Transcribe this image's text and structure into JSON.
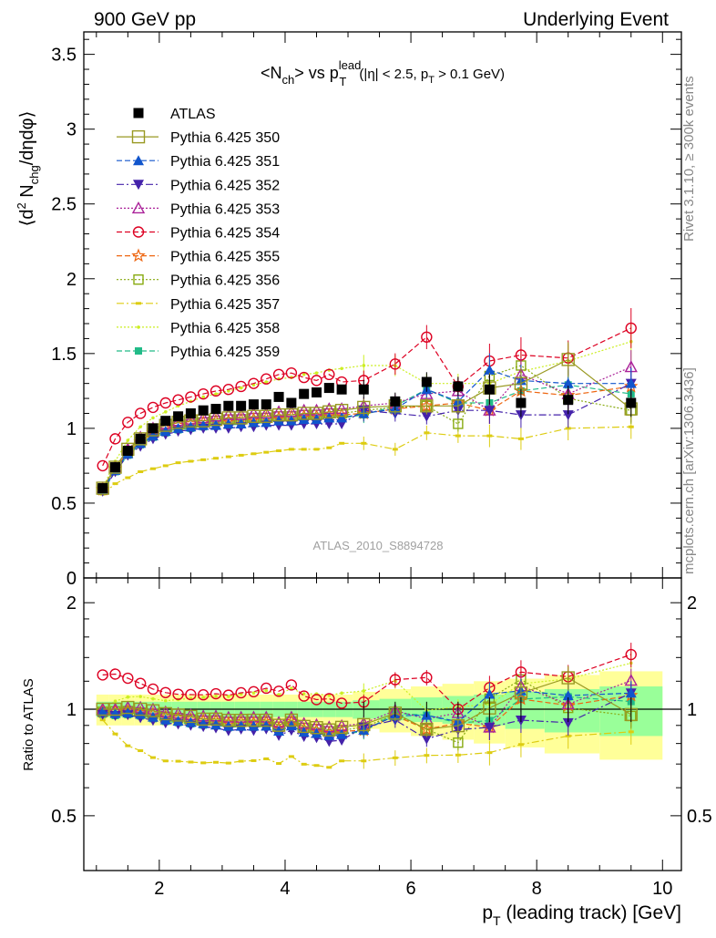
{
  "header": {
    "left": "900 GeV pp",
    "right": "Underlying Event"
  },
  "side_labels": {
    "rivet": "Rivet 3.1.10, ≥ 300k events",
    "mcplots": "mcplots.cern.ch [arXiv:1306.3436]"
  },
  "analysis_id": "ATLAS_2010_S8894728",
  "chart_data": [
    {
      "type": "line",
      "title_parts": {
        "a": "<N",
        "a_sub": "ch",
        "b": "> vs p",
        "b_sup": "lead",
        "b_sub": "T",
        "c": " (|η| < 2.5, p",
        "c_sub": "T",
        "d": " > 0.1 GeV)"
      },
      "ylabel_parts": {
        "a": "⟨d",
        "a_sup": "2",
        "b": " N",
        "b_sub": "chg",
        "c": "/dηdφ⟩"
      },
      "xlim": [
        0.8,
        10.3
      ],
      "ylim": [
        0,
        3.65
      ],
      "y_ticks": [
        0,
        0.5,
        1,
        1.5,
        2,
        2.5,
        3,
        3.5
      ],
      "y_tick_labels": [
        "0",
        "0.5",
        "1",
        "1.5",
        "2",
        "2.5",
        "3",
        "3.5"
      ],
      "x": [
        1.1,
        1.3,
        1.5,
        1.7,
        1.9,
        2.1,
        2.3,
        2.5,
        2.7,
        2.9,
        3.1,
        3.3,
        3.5,
        3.7,
        3.9,
        4.1,
        4.3,
        4.5,
        4.7,
        4.9,
        5.25,
        5.75,
        6.25,
        6.75,
        7.25,
        7.75,
        8.5,
        9.5
      ],
      "series": [
        {
          "name": "ATLAS",
          "color": "#000000",
          "marker": "square-filled",
          "line": "none",
          "values": [
            0.6,
            0.74,
            0.85,
            0.93,
            1.0,
            1.05,
            1.08,
            1.1,
            1.12,
            1.13,
            1.15,
            1.15,
            1.16,
            1.16,
            1.21,
            1.17,
            1.23,
            1.24,
            1.27,
            1.26,
            1.26,
            1.18,
            1.31,
            1.28,
            1.26,
            1.17,
            1.19,
            1.17
          ]
        },
        {
          "name": "Pythia 6.425 350",
          "color": "#999922",
          "marker": "square-open-large",
          "line": "solid",
          "values": [
            0.6,
            0.74,
            0.86,
            0.93,
            0.99,
            1.02,
            1.04,
            1.05,
            1.05,
            1.06,
            1.07,
            1.07,
            1.08,
            1.08,
            1.09,
            1.09,
            1.1,
            1.1,
            1.11,
            1.12,
            1.14,
            1.15,
            1.15,
            1.15,
            1.27,
            1.3,
            1.46,
            1.13
          ]
        },
        {
          "name": "Pythia 6.425 351",
          "color": "#1155cc",
          "marker": "triangle-up",
          "line": "dashed",
          "values": [
            0.59,
            0.72,
            0.83,
            0.9,
            0.95,
            0.98,
            1.0,
            1.01,
            1.02,
            1.02,
            1.03,
            1.03,
            1.04,
            1.04,
            1.05,
            1.05,
            1.06,
            1.06,
            1.07,
            1.07,
            1.1,
            1.13,
            1.26,
            1.18,
            1.39,
            1.32,
            1.3,
            1.3
          ]
        },
        {
          "name": "Pythia 6.425 352",
          "color": "#4422aa",
          "marker": "triangle-down",
          "line": "dashdot",
          "values": [
            0.58,
            0.71,
            0.82,
            0.88,
            0.93,
            0.96,
            0.98,
            0.99,
            1.0,
            1.0,
            1.0,
            1.01,
            1.01,
            1.02,
            1.02,
            1.02,
            1.03,
            1.03,
            1.03,
            1.03,
            1.12,
            1.1,
            1.08,
            1.12,
            1.12,
            1.09,
            1.09,
            1.3
          ]
        },
        {
          "name": "Pythia 6.425 353",
          "color": "#aa2299",
          "marker": "triangle-up-open",
          "line": "dotted",
          "values": [
            0.6,
            0.74,
            0.86,
            0.94,
            1.0,
            1.03,
            1.05,
            1.06,
            1.07,
            1.08,
            1.09,
            1.09,
            1.1,
            1.1,
            1.11,
            1.11,
            1.12,
            1.12,
            1.13,
            1.13,
            1.15,
            1.17,
            1.23,
            1.25,
            1.12,
            1.36,
            1.23,
            1.41
          ]
        },
        {
          "name": "Pythia 6.425 354",
          "color": "#dd0022",
          "marker": "circle-open",
          "line": "dashed",
          "values": [
            0.75,
            0.93,
            1.04,
            1.1,
            1.14,
            1.17,
            1.19,
            1.21,
            1.23,
            1.25,
            1.26,
            1.28,
            1.3,
            1.33,
            1.36,
            1.37,
            1.34,
            1.32,
            1.36,
            1.31,
            1.32,
            1.43,
            1.61,
            1.28,
            1.45,
            1.49,
            1.47,
            1.67
          ]
        },
        {
          "name": "Pythia 6.425 355",
          "color": "#ee6611",
          "marker": "star-open",
          "line": "dashed",
          "values": [
            0.59,
            0.73,
            0.84,
            0.91,
            0.97,
            1.0,
            1.02,
            1.03,
            1.04,
            1.05,
            1.05,
            1.06,
            1.06,
            1.07,
            1.07,
            1.08,
            1.08,
            1.08,
            1.09,
            1.09,
            1.1,
            1.13,
            1.15,
            1.17,
            1.12,
            1.25,
            1.22,
            1.28
          ]
        },
        {
          "name": "Pythia 6.425 356",
          "color": "#88aa11",
          "marker": "square-open",
          "line": "dotted",
          "values": [
            0.59,
            0.73,
            0.84,
            0.91,
            0.97,
            1.0,
            1.02,
            1.03,
            1.04,
            1.05,
            1.06,
            1.06,
            1.07,
            1.07,
            1.08,
            1.08,
            1.09,
            1.09,
            1.1,
            1.1,
            1.12,
            1.14,
            1.15,
            1.03,
            1.35,
            1.42,
            1.2,
            1.12
          ]
        },
        {
          "name": "Pythia 6.425 357",
          "color": "#ddcc11",
          "marker": "small-dash",
          "line": "dashdot",
          "values": [
            0.56,
            0.63,
            0.67,
            0.71,
            0.73,
            0.75,
            0.77,
            0.78,
            0.79,
            0.8,
            0.81,
            0.82,
            0.83,
            0.84,
            0.85,
            0.86,
            0.86,
            0.86,
            0.87,
            0.9,
            0.9,
            0.86,
            0.97,
            0.95,
            0.95,
            0.93,
            1.0,
            1.01
          ]
        },
        {
          "name": "Pythia 6.425 358",
          "color": "#ccee22",
          "marker": "small-dot",
          "line": "dotted",
          "values": [
            0.6,
            0.78,
            0.92,
            1.01,
            1.07,
            1.11,
            1.15,
            1.18,
            1.21,
            1.23,
            1.25,
            1.27,
            1.29,
            1.31,
            1.33,
            1.34,
            1.36,
            1.37,
            1.39,
            1.4,
            1.42,
            1.42,
            1.3,
            1.3,
            1.3,
            1.38,
            1.45,
            1.58
          ]
        },
        {
          "name": "Pythia 6.425 359",
          "color": "#22bb88",
          "marker": "square-filled-small",
          "line": "dashed",
          "values": [
            0.58,
            0.71,
            0.82,
            0.89,
            0.94,
            0.97,
            0.99,
            1.0,
            1.01,
            1.02,
            1.02,
            1.03,
            1.03,
            1.04,
            1.05,
            1.05,
            1.06,
            1.06,
            1.07,
            1.07,
            1.09,
            1.15,
            1.26,
            1.17,
            1.17,
            1.25,
            1.29,
            1.23
          ]
        }
      ]
    },
    {
      "type": "line",
      "ylabel": "Ratio to ATLAS",
      "xlabel_parts": {
        "a": "p",
        "a_sub": "T",
        "b": " (leading track) [GeV]"
      },
      "xlim": [
        0.8,
        10.3
      ],
      "ylim": [
        0.35,
        2.35
      ],
      "y_scale": "log",
      "y_ticks": [
        0.5,
        1,
        2
      ],
      "y_tick_labels": [
        "0.5",
        "1",
        "2"
      ],
      "x_ticks": [
        2,
        4,
        6,
        8,
        10
      ],
      "x_tick_labels": [
        "2",
        "4",
        "6",
        "8",
        "10"
      ],
      "reference_band_inner": [
        0.05,
        0.05,
        0.05,
        0.05,
        0.05,
        0.05,
        0.05,
        0.05,
        0.05,
        0.05,
        0.05,
        0.05,
        0.05,
        0.05,
        0.05,
        0.05,
        0.05,
        0.05,
        0.05,
        0.05,
        0.06,
        0.07,
        0.08,
        0.09,
        0.1,
        0.12,
        0.14,
        0.16
      ],
      "reference_band_outer": [
        0.1,
        0.1,
        0.1,
        0.1,
        0.1,
        0.1,
        0.1,
        0.1,
        0.1,
        0.1,
        0.1,
        0.1,
        0.1,
        0.1,
        0.1,
        0.1,
        0.1,
        0.1,
        0.1,
        0.1,
        0.12,
        0.14,
        0.16,
        0.18,
        0.2,
        0.22,
        0.25,
        0.28
      ]
    }
  ]
}
